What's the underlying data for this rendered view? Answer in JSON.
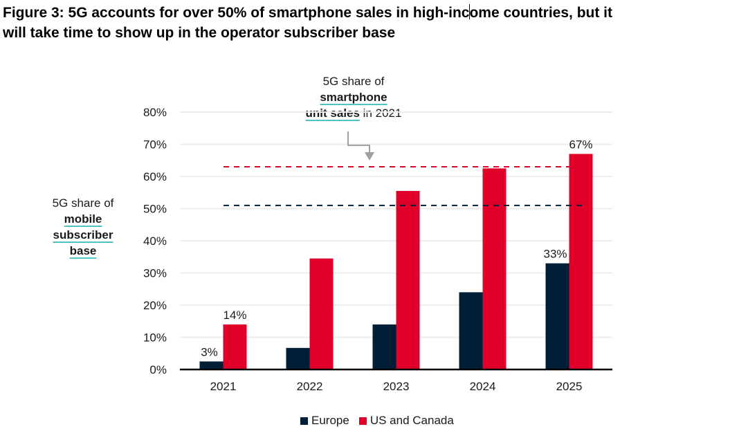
{
  "title_line1_a": "Figure 3: 5G accounts for over 50% of smartphone sales in high-inc",
  "title_line1_b": "ome countries, but it",
  "title_line2": "will take time to show up in the operator subscriber base",
  "annotations": {
    "top": {
      "line1": "5G share of",
      "line2_bold": "smartphone",
      "line3_bold": "unit sales",
      "line3_rest": " in 2021"
    },
    "left": {
      "line1": "5G share of",
      "line2_bold": "mobile",
      "line3_bold": "subscriber",
      "line4_bold": "base"
    }
  },
  "colors": {
    "europe": "#001e36",
    "us_canada": "#e0002a",
    "grid": "#ededed",
    "axis": "#000000",
    "arrow": "#a0a0a0",
    "underline": "#4fc3c0"
  },
  "chart_data": {
    "type": "bar",
    "title": "5G accounts for over 50% of smartphone sales in high-income countries, but it will take time to show up in the operator subscriber base",
    "xlabel": "",
    "ylabel": "5G share of mobile subscriber base",
    "categories": [
      "2021",
      "2022",
      "2023",
      "2024",
      "2025"
    ],
    "series": [
      {
        "name": "Europe",
        "color": "#001e36",
        "values": [
          2.5,
          6.7,
          14,
          24,
          33
        ],
        "data_labels": [
          "3%",
          "",
          "",
          "",
          "33%"
        ]
      },
      {
        "name": "US and Canada",
        "color": "#e0002a",
        "values": [
          14,
          34.5,
          55.5,
          62.5,
          67
        ],
        "data_labels": [
          "14%",
          "",
          "",
          "",
          "67%"
        ]
      }
    ],
    "reference_lines": [
      {
        "name": "US and Canada smartphone unit sales 5G share 2021",
        "value": 63,
        "color": "#e0002a",
        "style": "dashed"
      },
      {
        "name": "Europe smartphone unit sales 5G share 2021",
        "value": 51,
        "color": "#001e36",
        "style": "dashed"
      }
    ],
    "ylim": [
      0,
      80
    ],
    "yticks": [
      0,
      10,
      20,
      30,
      40,
      50,
      60,
      70,
      80
    ],
    "ytick_labels": [
      "0%",
      "10%",
      "20%",
      "30%",
      "40%",
      "50%",
      "60%",
      "70%",
      "80%"
    ],
    "grid": true,
    "legend": {
      "position": "bottom",
      "entries": [
        "Europe",
        "US and Canada"
      ]
    }
  }
}
